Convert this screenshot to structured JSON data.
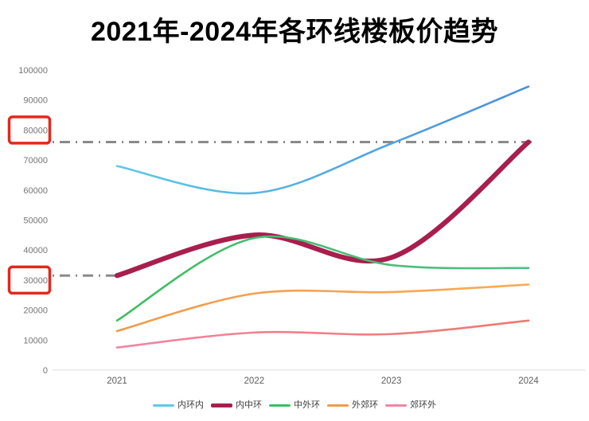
{
  "title": "2021年-2024年各环线楼板价趋势",
  "chart_data": {
    "type": "line",
    "title": "2021年-2024年各环线楼板价趋势",
    "x": [
      2021,
      2022,
      2023,
      2024
    ],
    "x_tick_labels": [
      "2021",
      "2022",
      "2023",
      "2024"
    ],
    "xlabel": "",
    "ylabel": "",
    "ylim": [
      0,
      100000
    ],
    "y_ticks": [
      0,
      10000,
      20000,
      30000,
      40000,
      50000,
      60000,
      70000,
      80000,
      90000,
      100000
    ],
    "y_tick_labels": [
      "0",
      "10000",
      "20000",
      "30000",
      "40000",
      "50000",
      "60000",
      "70000",
      "80000",
      "90000",
      "100000"
    ],
    "highlighted_y_ticks": [
      30000,
      80000
    ],
    "highlight_box_color": "#e4281c",
    "grid": false,
    "legend_position": "bottom",
    "axis_color": "#e3e3e3",
    "tick_label_color": "#757575",
    "series": [
      {
        "name": "内环内",
        "values": [
          68000,
          59000,
          75500,
          94500
        ],
        "color": "#5ec9e8",
        "color_end": "#4a90d9",
        "width": 2.6
      },
      {
        "name": "内中环",
        "values": [
          31500,
          45000,
          37500,
          76000
        ],
        "color": "#a81e4d",
        "width": 6.2
      },
      {
        "name": "中外环",
        "values": [
          16500,
          44000,
          35000,
          34000
        ],
        "color": "#3ebe61",
        "color_end": "#4dbe85",
        "width": 2.6
      },
      {
        "name": "外郊环",
        "values": [
          13000,
          25500,
          26000,
          28500
        ],
        "color": "#f29a4a",
        "color_end": "#fbaa55",
        "width": 2.6
      },
      {
        "name": "郊环外",
        "values": [
          7500,
          12500,
          12000,
          16500
        ],
        "color": "#f285a4",
        "color_end": "#ea7a6e",
        "width": 2.6
      }
    ],
    "reference_lines": [
      {
        "value": 76000,
        "to_year": 2024,
        "style": "dash-dot",
        "color": "#8a8a8a"
      },
      {
        "value": 31500,
        "to_year": 2021,
        "style": "dash-dot",
        "color": "#8a8a8a"
      }
    ]
  }
}
